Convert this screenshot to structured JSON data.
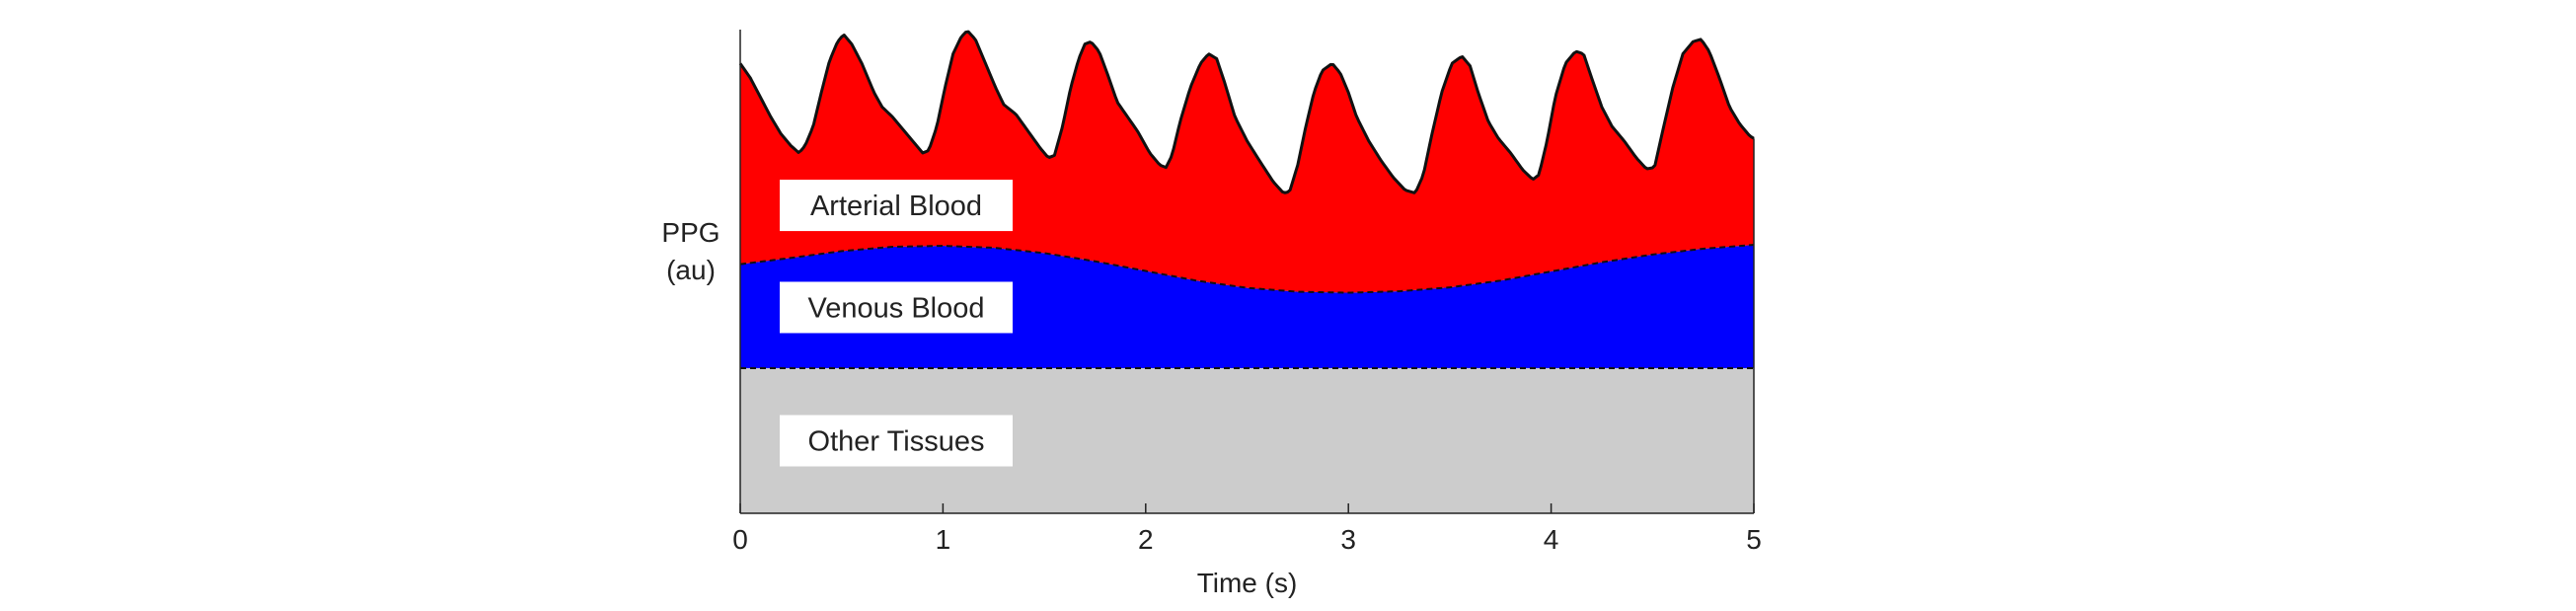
{
  "chart_data": {
    "type": "area",
    "title": "",
    "xlabel": "Time (s)",
    "ylabel_line1": "PPG",
    "ylabel_line2": "(au)",
    "xlim": [
      0,
      5
    ],
    "ylim": [
      0,
      1
    ],
    "xticks": [
      "0",
      "1",
      "2",
      "3",
      "4",
      "5"
    ],
    "grid": false,
    "layers": [
      {
        "name": "Other Tissues",
        "color": "#cccccc",
        "label": "Other Tissues",
        "boundary": "dashed",
        "upper": [
          [
            0,
            0.3
          ],
          [
            5,
            0.3
          ]
        ]
      },
      {
        "name": "Venous Blood",
        "color": "#0000ff",
        "label": "Venous Blood",
        "boundary": "dashed",
        "upper": [
          [
            0,
            0.515
          ],
          [
            0.25,
            0.528
          ],
          [
            0.5,
            0.542
          ],
          [
            0.75,
            0.551
          ],
          [
            1.0,
            0.553
          ],
          [
            1.25,
            0.549
          ],
          [
            1.5,
            0.538
          ],
          [
            1.75,
            0.521
          ],
          [
            2.0,
            0.501
          ],
          [
            2.25,
            0.481
          ],
          [
            2.5,
            0.466
          ],
          [
            2.75,
            0.458
          ],
          [
            3.0,
            0.456
          ],
          [
            3.25,
            0.459
          ],
          [
            3.5,
            0.467
          ],
          [
            3.75,
            0.481
          ],
          [
            4.0,
            0.5
          ],
          [
            4.25,
            0.519
          ],
          [
            4.5,
            0.535
          ],
          [
            4.75,
            0.547
          ],
          [
            5.0,
            0.555
          ]
        ]
      },
      {
        "name": "Arterial Blood",
        "color": "#ff0000",
        "label": "Arterial Blood",
        "boundary": "solid",
        "upper": [
          [
            0.0,
            0.93
          ],
          [
            0.05,
            0.9
          ],
          [
            0.1,
            0.86
          ],
          [
            0.15,
            0.82
          ],
          [
            0.2,
            0.785
          ],
          [
            0.25,
            0.76
          ],
          [
            0.29,
            0.745
          ],
          [
            0.32,
            0.76
          ],
          [
            0.36,
            0.8
          ],
          [
            0.4,
            0.87
          ],
          [
            0.44,
            0.935
          ],
          [
            0.48,
            0.975
          ],
          [
            0.51,
            0.99
          ],
          [
            0.55,
            0.97
          ],
          [
            0.6,
            0.93
          ],
          [
            0.66,
            0.87
          ],
          [
            0.7,
            0.84
          ],
          [
            0.75,
            0.82
          ],
          [
            0.8,
            0.795
          ],
          [
            0.86,
            0.765
          ],
          [
            0.9,
            0.745
          ],
          [
            0.93,
            0.75
          ],
          [
            0.97,
            0.8
          ],
          [
            1.01,
            0.88
          ],
          [
            1.05,
            0.95
          ],
          [
            1.09,
            0.985
          ],
          [
            1.12,
            0.998
          ],
          [
            1.16,
            0.98
          ],
          [
            1.2,
            0.94
          ],
          [
            1.26,
            0.88
          ],
          [
            1.3,
            0.845
          ],
          [
            1.36,
            0.825
          ],
          [
            1.42,
            0.79
          ],
          [
            1.48,
            0.755
          ],
          [
            1.52,
            0.735
          ],
          [
            1.55,
            0.74
          ],
          [
            1.59,
            0.8
          ],
          [
            1.63,
            0.88
          ],
          [
            1.67,
            0.94
          ],
          [
            1.7,
            0.97
          ],
          [
            1.73,
            0.975
          ],
          [
            1.77,
            0.955
          ],
          [
            1.81,
            0.91
          ],
          [
            1.86,
            0.85
          ],
          [
            1.91,
            0.82
          ],
          [
            1.96,
            0.79
          ],
          [
            2.02,
            0.745
          ],
          [
            2.07,
            0.72
          ],
          [
            2.1,
            0.715
          ],
          [
            2.13,
            0.74
          ],
          [
            2.17,
            0.81
          ],
          [
            2.22,
            0.88
          ],
          [
            2.27,
            0.93
          ],
          [
            2.31,
            0.95
          ],
          [
            2.35,
            0.94
          ],
          [
            2.39,
            0.89
          ],
          [
            2.44,
            0.82
          ],
          [
            2.5,
            0.77
          ],
          [
            2.56,
            0.73
          ],
          [
            2.63,
            0.685
          ],
          [
            2.68,
            0.662
          ],
          [
            2.71,
            0.665
          ],
          [
            2.75,
            0.72
          ],
          [
            2.79,
            0.8
          ],
          [
            2.83,
            0.87
          ],
          [
            2.87,
            0.915
          ],
          [
            2.92,
            0.93
          ],
          [
            2.96,
            0.91
          ],
          [
            3.0,
            0.87
          ],
          [
            3.04,
            0.82
          ],
          [
            3.1,
            0.77
          ],
          [
            3.16,
            0.73
          ],
          [
            3.22,
            0.695
          ],
          [
            3.28,
            0.668
          ],
          [
            3.33,
            0.662
          ],
          [
            3.37,
            0.7
          ],
          [
            3.41,
            0.78
          ],
          [
            3.46,
            0.87
          ],
          [
            3.51,
            0.93
          ],
          [
            3.56,
            0.945
          ],
          [
            3.6,
            0.925
          ],
          [
            3.64,
            0.87
          ],
          [
            3.69,
            0.81
          ],
          [
            3.74,
            0.775
          ],
          [
            3.8,
            0.745
          ],
          [
            3.86,
            0.71
          ],
          [
            3.91,
            0.69
          ],
          [
            3.94,
            0.7
          ],
          [
            3.98,
            0.77
          ],
          [
            4.02,
            0.86
          ],
          [
            4.07,
            0.93
          ],
          [
            4.12,
            0.955
          ],
          [
            4.16,
            0.95
          ],
          [
            4.2,
            0.9
          ],
          [
            4.25,
            0.84
          ],
          [
            4.3,
            0.8
          ],
          [
            4.36,
            0.77
          ],
          [
            4.42,
            0.735
          ],
          [
            4.47,
            0.712
          ],
          [
            4.51,
            0.715
          ],
          [
            4.55,
            0.79
          ],
          [
            4.6,
            0.88
          ],
          [
            4.65,
            0.95
          ],
          [
            4.7,
            0.975
          ],
          [
            4.74,
            0.98
          ],
          [
            4.78,
            0.955
          ],
          [
            4.83,
            0.9
          ],
          [
            4.88,
            0.84
          ],
          [
            4.93,
            0.805
          ],
          [
            4.98,
            0.78
          ],
          [
            5.0,
            0.775
          ]
        ]
      }
    ]
  }
}
